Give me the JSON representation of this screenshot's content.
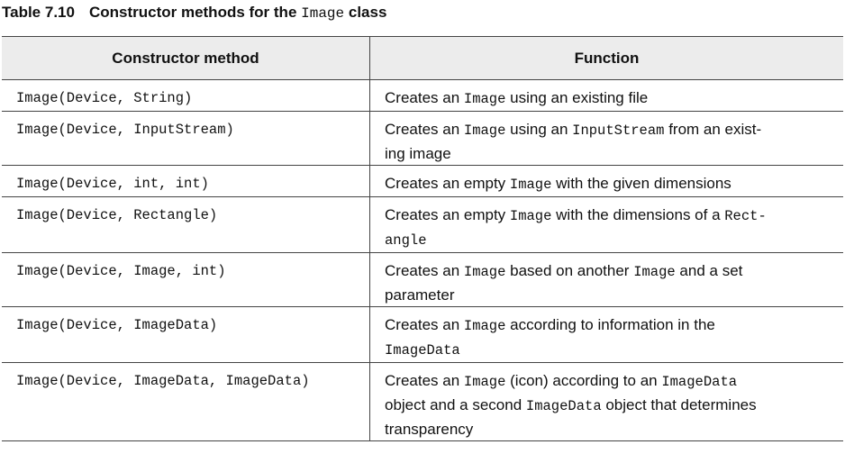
{
  "caption": {
    "label": "Table 7.10",
    "text_before": "Constructor methods for the ",
    "code": "Image",
    "text_after": " class"
  },
  "headers": {
    "method": "Constructor method",
    "function": "Function"
  },
  "rows": [
    {
      "method": "Image(Device, String)",
      "function": [
        {
          "t": "Creates an "
        },
        {
          "c": "Image"
        },
        {
          "t": " using an existing file"
        }
      ]
    },
    {
      "method": "Image(Device, InputStream)",
      "function": [
        {
          "t": "Creates an "
        },
        {
          "c": "Image"
        },
        {
          "t": " using an "
        },
        {
          "c": "InputStream"
        },
        {
          "t": " from an exist-"
        },
        {
          "br": true
        },
        {
          "t": "ing image"
        }
      ]
    },
    {
      "method": "Image(Device, int, int)",
      "function": [
        {
          "t": "Creates an empty "
        },
        {
          "c": "Image"
        },
        {
          "t": " with the given dimensions"
        }
      ]
    },
    {
      "method": "Image(Device, Rectangle)",
      "function": [
        {
          "t": "Creates an empty "
        },
        {
          "c": "Image"
        },
        {
          "t": " with the dimensions of a "
        },
        {
          "c": "Rect-"
        },
        {
          "br": true
        },
        {
          "c": "angle"
        }
      ]
    },
    {
      "method": "Image(Device, Image, int)",
      "function": [
        {
          "t": "Creates an "
        },
        {
          "c": "Image"
        },
        {
          "t": " based on another "
        },
        {
          "c": "Image"
        },
        {
          "t": " and a set"
        },
        {
          "br": true
        },
        {
          "t": "parameter"
        }
      ]
    },
    {
      "method": "Image(Device, ImageData)",
      "function": [
        {
          "t": "Creates an "
        },
        {
          "c": "Image"
        },
        {
          "t": " according to information in the"
        },
        {
          "br": true
        },
        {
          "c": "ImageData"
        }
      ]
    },
    {
      "method": "Image(Device, ImageData, ImageData)",
      "function": [
        {
          "t": "Creates an "
        },
        {
          "c": "Image"
        },
        {
          "t": " (icon) according to an "
        },
        {
          "c": "ImageData"
        },
        {
          "br": true
        },
        {
          "t": "object and a second "
        },
        {
          "c": "ImageData"
        },
        {
          "t": " object that determines"
        },
        {
          "br": true
        },
        {
          "t": "transparency"
        }
      ]
    }
  ]
}
